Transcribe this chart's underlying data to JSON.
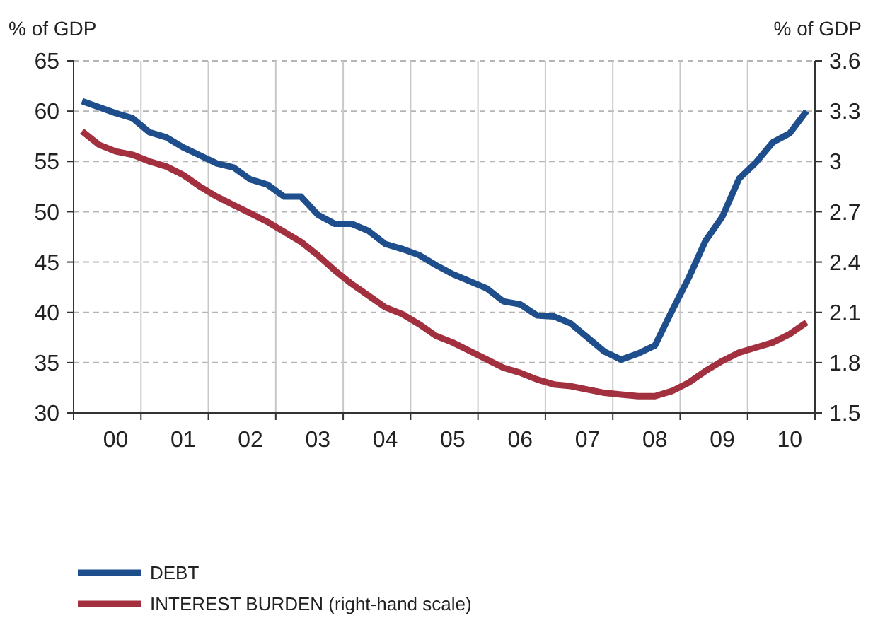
{
  "chart_data": {
    "type": "line",
    "ylabel": "% of GDP",
    "y2label": "% of GDP",
    "categories": [
      null,
      null,
      "00",
      null,
      null,
      null,
      "01",
      null,
      null,
      null,
      "02",
      null,
      null,
      null,
      "03",
      null,
      null,
      null,
      "04",
      null,
      null,
      null,
      "05",
      null,
      null,
      null,
      "06",
      null,
      null,
      null,
      "07",
      null,
      null,
      null,
      "08",
      null,
      null,
      null,
      "09",
      null,
      null,
      null,
      "10",
      null
    ],
    "series": [
      {
        "name": "DEBT",
        "color": "#1f4e8c",
        "values": [
          61.0,
          60.4,
          59.8,
          59.3,
          57.9,
          57.4,
          56.4,
          55.6,
          54.8,
          54.4,
          53.2,
          52.7,
          51.5,
          51.5,
          49.7,
          48.8,
          48.8,
          48.1,
          46.8,
          46.3,
          45.7,
          44.7,
          43.8,
          43.1,
          42.4,
          41.1,
          40.8,
          39.7,
          39.6,
          38.9,
          37.5,
          36.1,
          35.3,
          35.9,
          36.7,
          40.1,
          43.4,
          47.1,
          49.5,
          53.3,
          54.9,
          56.9,
          57.8,
          60.0
        ]
      },
      {
        "name": "INTEREST BURDEN (right-hand scale)",
        "color": "#a3303f",
        "axis": "y2",
        "values": [
          3.18,
          3.1,
          3.06,
          3.04,
          3.0,
          2.97,
          2.92,
          2.85,
          2.79,
          2.74,
          2.69,
          2.64,
          2.58,
          2.52,
          2.44,
          2.35,
          2.27,
          2.2,
          2.13,
          2.09,
          2.03,
          1.96,
          1.92,
          1.87,
          1.82,
          1.77,
          1.74,
          1.7,
          1.67,
          1.66,
          1.64,
          1.62,
          1.61,
          1.6,
          1.6,
          1.63,
          1.68,
          1.75,
          1.81,
          1.86,
          1.89,
          1.92,
          1.97,
          2.04
        ]
      }
    ],
    "ylim": [
      30,
      65
    ],
    "yticks": [
      30,
      35,
      40,
      45,
      50,
      55,
      60,
      65
    ],
    "y2lim": [
      1.5,
      3.6
    ],
    "y2ticks": [
      1.5,
      1.8,
      2.1,
      2.4,
      2.7,
      3,
      3.3,
      3.6
    ],
    "grid": true,
    "legend": "bottom",
    "marker": "none",
    "line_style": "solid"
  }
}
